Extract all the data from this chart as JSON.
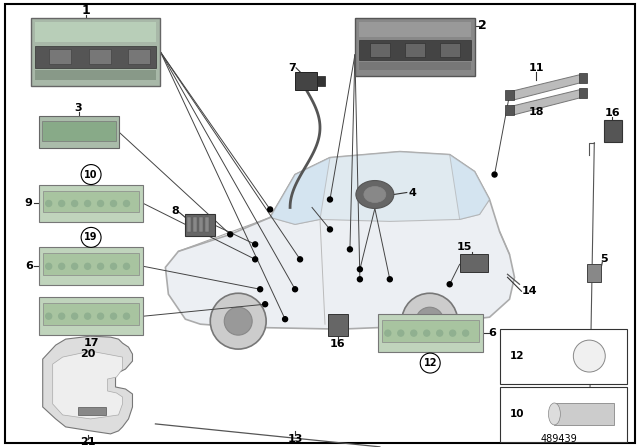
{
  "bg_color": "#ffffff",
  "fig_width": 6.4,
  "fig_height": 4.48,
  "dpi": 100,
  "part_number": "489439",
  "car": {
    "body_color": "#e8ecf0",
    "body_edge": "#999999",
    "glass_color": "#d8e8f0",
    "glass_edge": "#aaaaaa"
  }
}
